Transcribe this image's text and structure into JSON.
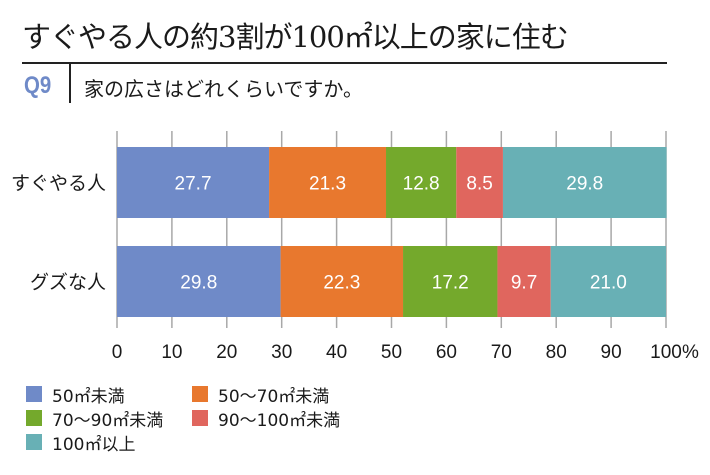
{
  "header": {
    "title": "すぐやる人の約3割が100㎡以上の家に住む",
    "question_number": "Q9",
    "question": "家の広さはどれくらいですか。"
  },
  "chart_data": {
    "type": "bar",
    "orientation": "horizontal",
    "stacked": true,
    "categories": [
      "すぐやる人",
      "グズな人"
    ],
    "series": [
      {
        "name": "50㎡未満",
        "color": "#6f8ac8",
        "values": [
          27.7,
          29.8
        ],
        "labels": [
          "27.7",
          "29.8"
        ]
      },
      {
        "name": "50～70㎡未満",
        "color": "#e8782e",
        "values": [
          21.3,
          22.3
        ],
        "labels": [
          "21.3",
          "22.3"
        ]
      },
      {
        "name": "70～90㎡未満",
        "color": "#74a92c",
        "values": [
          12.8,
          17.2
        ],
        "labels": [
          "12.8",
          "17.2"
        ]
      },
      {
        "name": "90～100㎡未満",
        "color": "#e0665e",
        "values": [
          8.5,
          9.7
        ],
        "labels": [
          "8.5",
          "9.7"
        ]
      },
      {
        "name": "100㎡以上",
        "color": "#68b0b5",
        "values": [
          29.8,
          21.0
        ],
        "labels": [
          "29.8",
          "21.0"
        ]
      }
    ],
    "xlim": [
      0,
      100
    ],
    "xticks": [
      "0",
      "10",
      "20",
      "30",
      "40",
      "50",
      "60",
      "70",
      "80",
      "90",
      "100"
    ],
    "xunit": "%",
    "grid": true,
    "legend_position": "bottom-left",
    "title": "",
    "xlabel": "",
    "ylabel": ""
  }
}
